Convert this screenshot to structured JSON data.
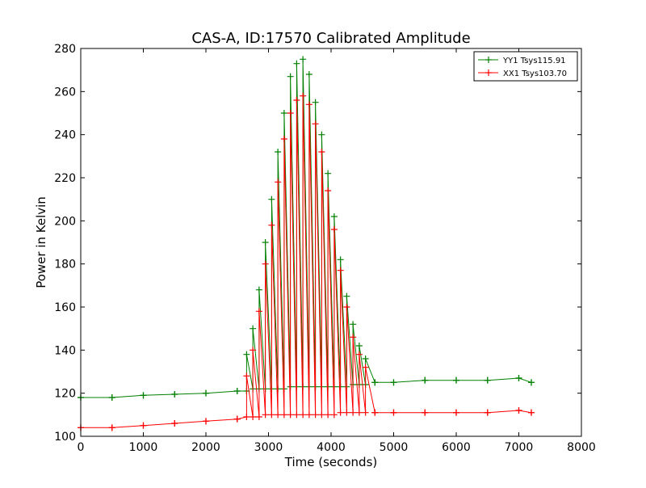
{
  "chart_data": {
    "type": "line",
    "title": "CAS-A, ID:17570 Calibrated Amplitude",
    "xlabel": "Time (seconds)",
    "ylabel": "Power in Kelvin",
    "xlim": [
      0,
      8000
    ],
    "ylim": [
      100,
      280
    ],
    "x_ticks": [
      0,
      1000,
      2000,
      3000,
      4000,
      5000,
      6000,
      7000,
      8000
    ],
    "y_ticks": [
      100,
      120,
      140,
      160,
      180,
      200,
      220,
      240,
      260,
      280
    ],
    "x_tick_labels": [
      "0",
      "1000",
      "2000",
      "3000",
      "4000",
      "5000",
      "6000",
      "7000",
      "8000"
    ],
    "y_tick_labels": [
      "100",
      "120",
      "140",
      "160",
      "180",
      "200",
      "220",
      "240",
      "260",
      "280"
    ],
    "grid": false,
    "legend_position": "top-right",
    "marker": "+",
    "series": [
      {
        "name": "YY1 Tsys115.91",
        "color": "#008000",
        "x": [
          0,
          500,
          1000,
          1500,
          2000,
          2500,
          2650,
          2750,
          2850,
          2950,
          3050,
          3150,
          3250,
          3350,
          3450,
          3550,
          3650,
          3750,
          3850,
          3950,
          4050,
          4150,
          4250,
          4350,
          4450,
          4550,
          4700,
          5000,
          5500,
          6000,
          6500,
          7000,
          7200
        ],
        "values": [
          118,
          118,
          119,
          119.5,
          120,
          121,
          138,
          150,
          168,
          190,
          210,
          232,
          250,
          267,
          273,
          275,
          268,
          255,
          240,
          222,
          202,
          182,
          165,
          152,
          142,
          136,
          125,
          125,
          126,
          126,
          126,
          127,
          125
        ],
        "baseline": [
          118,
          118,
          119,
          119.5,
          120,
          121,
          121,
          122,
          122,
          122,
          122,
          122,
          122,
          123,
          123,
          123,
          123,
          123,
          123,
          123,
          123,
          123,
          123,
          124,
          124,
          124,
          125,
          125,
          126,
          126,
          126,
          127,
          125
        ]
      },
      {
        "name": "XX1 Tsys103.70",
        "color": "#ff0000",
        "x": [
          0,
          500,
          1000,
          1500,
          2000,
          2500,
          2650,
          2750,
          2850,
          2950,
          3050,
          3150,
          3250,
          3350,
          3450,
          3550,
          3650,
          3750,
          3850,
          3950,
          4050,
          4150,
          4250,
          4350,
          4450,
          4550,
          4700,
          5000,
          5500,
          6000,
          6500,
          7000,
          7200
        ],
        "values": [
          104,
          104,
          105,
          106,
          107,
          108,
          128,
          140,
          158,
          180,
          198,
          218,
          238,
          250,
          256,
          258,
          254,
          245,
          232,
          214,
          196,
          177,
          160,
          146,
          138,
          132,
          111,
          111,
          111,
          111,
          111,
          112,
          111
        ],
        "baseline": [
          104,
          104,
          105,
          106,
          107,
          108,
          109,
          109,
          109,
          110,
          110,
          110,
          110,
          110,
          110,
          110,
          110,
          110,
          110,
          110,
          110,
          111,
          111,
          111,
          111,
          111,
          111,
          111,
          111,
          111,
          111,
          112,
          111
        ]
      }
    ]
  }
}
